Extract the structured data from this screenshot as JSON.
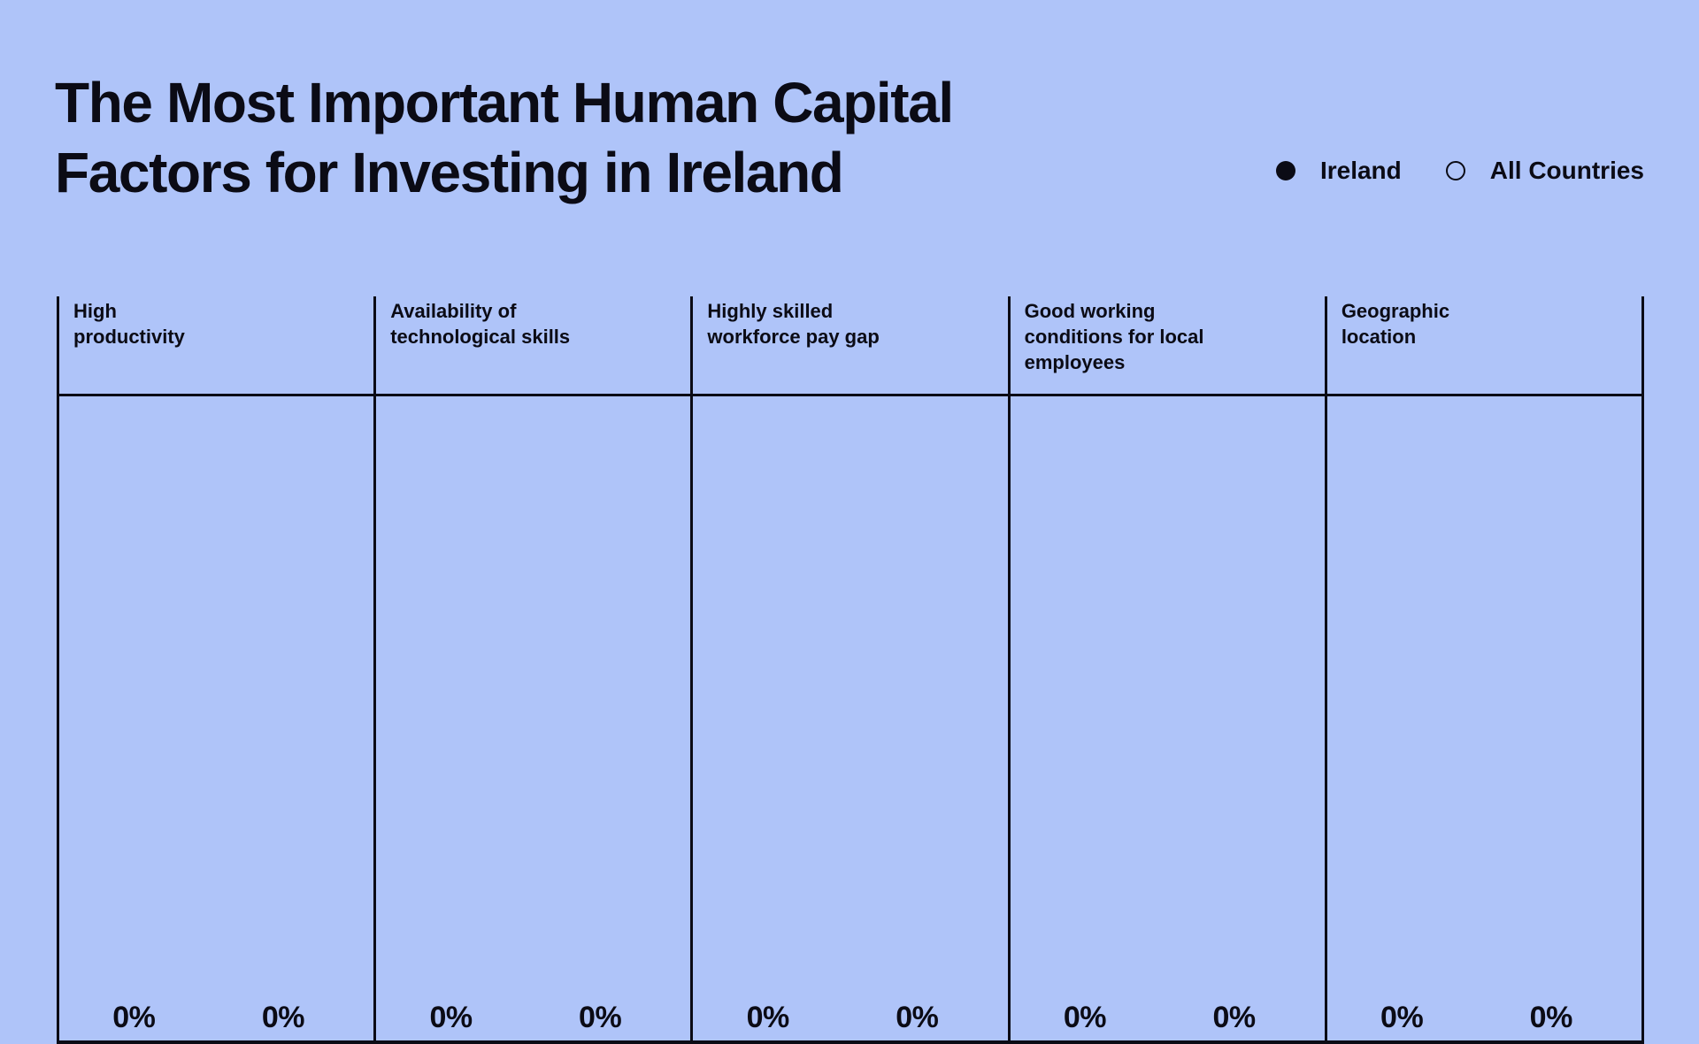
{
  "colors": {
    "background": "#afc4f9",
    "ink": "#0b0b15"
  },
  "title": {
    "line1": "The Most Important Human Capital",
    "line2": "Factors for Investing in Ireland"
  },
  "legend": {
    "items": [
      {
        "label": "Ireland",
        "marker": "filled-circle"
      },
      {
        "label": "All Countries",
        "marker": "open-circle"
      }
    ]
  },
  "columns": [
    {
      "header": "High\nproductivity",
      "values": [
        "0%",
        "0%"
      ]
    },
    {
      "header": "Availability of\ntechnological skills",
      "values": [
        "0%",
        "0%"
      ]
    },
    {
      "header": "Highly skilled\nworkforce pay gap",
      "values": [
        "0%",
        "0%"
      ]
    },
    {
      "header": "Good working\nconditions for local\nemployees",
      "values": [
        "0%",
        "0%"
      ]
    },
    {
      "header": "Geographic\nlocation",
      "values": [
        "0%",
        "0%"
      ]
    }
  ],
  "chart_data": {
    "type": "bar",
    "title": "The Most Important Human Capital Factors for Investing in Ireland",
    "categories": [
      "High productivity",
      "Availability of technological skills",
      "Highly skilled workforce pay gap",
      "Good working conditions for local employees",
      "Geographic location"
    ],
    "series": [
      {
        "name": "Ireland",
        "style": "filled",
        "values": [
          0,
          0,
          0,
          0,
          0
        ]
      },
      {
        "name": "All Countries",
        "style": "outline",
        "values": [
          0,
          0,
          0,
          0,
          0
        ]
      }
    ],
    "unit": "%",
    "displayed_value_labels": [
      "0%",
      "0%",
      "0%",
      "0%",
      "0%",
      "0%",
      "0%",
      "0%",
      "0%",
      "0%"
    ],
    "orientation": "vertical",
    "legend_position": "top-right",
    "grid": "column separator lines and bottom axis only",
    "note": "All bars currently render at 0% height"
  }
}
